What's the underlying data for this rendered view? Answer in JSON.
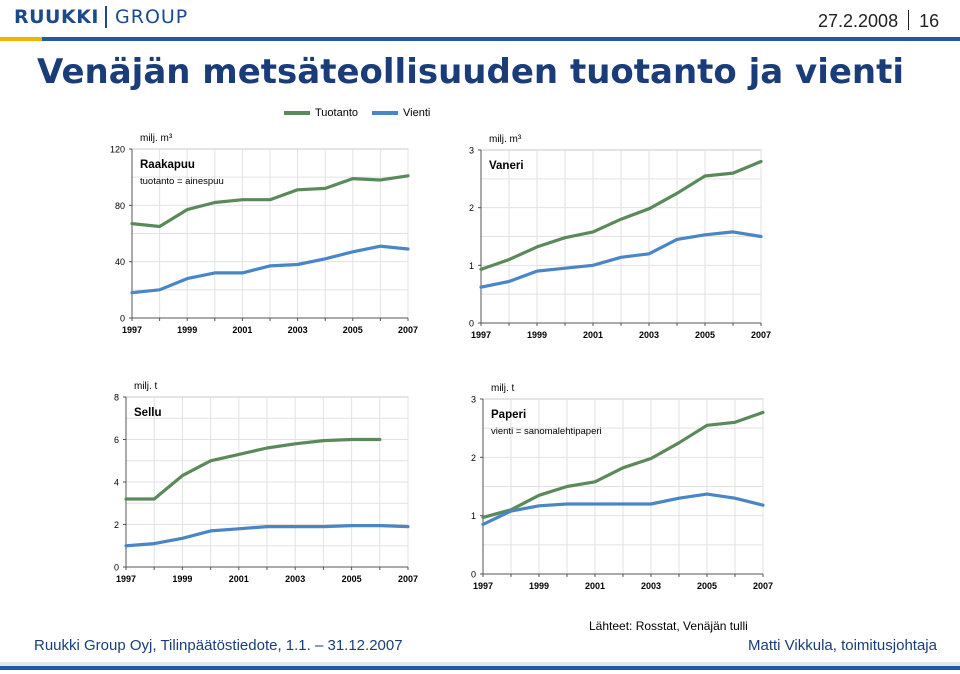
{
  "header": {
    "logo_text": "RUUKKI",
    "logo_group": "GROUP",
    "date": "27.2.2008",
    "page_number": "16"
  },
  "title": "Venäjän metsäteollisuuden tuotanto ja vienti",
  "legend": [
    {
      "name": "Tuotanto",
      "color": "#5a8a5a"
    },
    {
      "name": "Vienti",
      "color": "#4a86c5"
    }
  ],
  "colors": {
    "tuotanto": "#5a8a5a",
    "vienti": "#4a86c5",
    "brand": "#1a4a8c"
  },
  "chart_data": [
    {
      "type": "line",
      "unit_label": "milj. m³",
      "title": "Raakapuu",
      "subtitle": "tuotanto = ainespuu",
      "ylim": [
        0,
        120
      ],
      "yticks": [
        0,
        40,
        80,
        120
      ],
      "xlim": [
        1997,
        2007
      ],
      "xticks": [
        1997,
        1999,
        2001,
        2003,
        2005,
        2007
      ],
      "grid": true,
      "series": [
        {
          "name": "Tuotanto",
          "x": [
            1997,
            1998,
            1999,
            2000,
            2001,
            2002,
            2003,
            2004,
            2005,
            2006,
            2007
          ],
          "y": [
            67,
            65,
            77,
            82,
            84,
            84,
            91,
            92,
            99,
            98,
            101
          ]
        },
        {
          "name": "Vienti",
          "x": [
            1997,
            1998,
            1999,
            2000,
            2001,
            2002,
            2003,
            2004,
            2005,
            2006,
            2007
          ],
          "y": [
            18,
            20,
            28,
            32,
            32,
            37,
            38,
            42,
            47,
            51,
            49
          ]
        }
      ]
    },
    {
      "type": "line",
      "unit_label": "milj. m³",
      "title": "Vaneri",
      "subtitle": "",
      "ylim": [
        0,
        3
      ],
      "yticks": [
        0,
        1,
        2,
        3
      ],
      "xlim": [
        1997,
        2007
      ],
      "xticks": [
        1997,
        1999,
        2001,
        2003,
        2005,
        2007
      ],
      "grid": true,
      "series": [
        {
          "name": "Tuotanto",
          "x": [
            1997,
            1998,
            1999,
            2000,
            2001,
            2002,
            2003,
            2004,
            2005,
            2006,
            2007
          ],
          "y": [
            0.93,
            1.1,
            1.32,
            1.48,
            1.58,
            1.8,
            1.98,
            2.25,
            2.55,
            2.6,
            2.8
          ]
        },
        {
          "name": "Vienti",
          "x": [
            1997,
            1998,
            1999,
            2000,
            2001,
            2002,
            2003,
            2004,
            2005,
            2006,
            2007
          ],
          "y": [
            0.62,
            0.72,
            0.9,
            0.95,
            1.0,
            1.14,
            1.2,
            1.45,
            1.53,
            1.58,
            1.5
          ]
        }
      ]
    },
    {
      "type": "line",
      "unit_label": "milj. t",
      "title": "Sellu",
      "subtitle": "",
      "ylim": [
        0,
        8
      ],
      "yticks": [
        0,
        2,
        4,
        6,
        8
      ],
      "xlim": [
        1997,
        2007
      ],
      "xticks": [
        1997,
        1999,
        2001,
        2003,
        2005,
        2007
      ],
      "grid": true,
      "series": [
        {
          "name": "Tuotanto",
          "x": [
            1997,
            1998,
            1999,
            2000,
            2001,
            2002,
            2003,
            2004,
            2005,
            2006
          ],
          "y": [
            3.2,
            3.2,
            4.3,
            5.0,
            5.3,
            5.6,
            5.8,
            5.95,
            6.0,
            6.0
          ]
        },
        {
          "name": "Vienti",
          "x": [
            1997,
            1998,
            1999,
            2000,
            2001,
            2002,
            2003,
            2004,
            2005,
            2006,
            2007
          ],
          "y": [
            1.0,
            1.1,
            1.35,
            1.7,
            1.8,
            1.9,
            1.9,
            1.9,
            1.95,
            1.95,
            1.9
          ]
        }
      ]
    },
    {
      "type": "line",
      "unit_label": "milj. t",
      "title": "Paperi",
      "subtitle": "vienti = sanomalehtipaperi",
      "ylim": [
        0,
        3
      ],
      "yticks": [
        0,
        1,
        2,
        3
      ],
      "xlim": [
        1997,
        2007
      ],
      "xticks": [
        1997,
        1999,
        2001,
        2003,
        2005,
        2007
      ],
      "grid": true,
      "series": [
        {
          "name": "Tuotanto",
          "x": [
            1997,
            1998,
            1999,
            2000,
            2001,
            2002,
            2003,
            2004,
            2005,
            2006,
            2007
          ],
          "y": [
            0.97,
            1.1,
            1.35,
            1.5,
            1.58,
            1.82,
            1.98,
            2.25,
            2.55,
            2.6,
            2.77
          ]
        },
        {
          "name": "Vienti",
          "x": [
            1997,
            1998,
            1999,
            2000,
            2001,
            2002,
            2003,
            2004,
            2005,
            2006,
            2007
          ],
          "y": [
            0.85,
            1.08,
            1.17,
            1.2,
            1.2,
            1.2,
            1.2,
            1.3,
            1.37,
            1.3,
            1.18
          ]
        }
      ]
    }
  ],
  "source": "Lähteet: Rosstat, Venäjän tulli",
  "footer": {
    "left": "Ruukki Group Oyj, Tilinpäätöstiedote, 1.1. – 31.12.2007",
    "right": "Matti Vikkula, toimitusjohtaja"
  }
}
